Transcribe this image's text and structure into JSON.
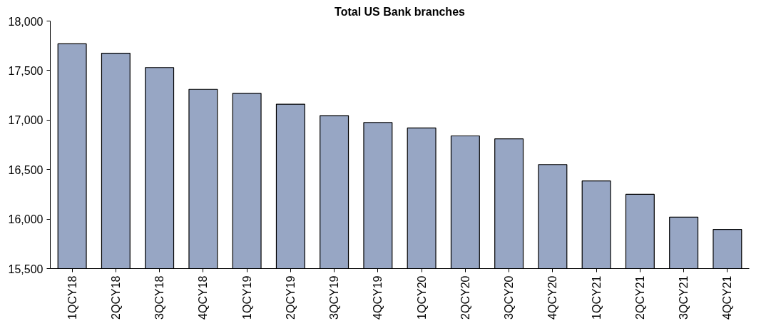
{
  "chart_data": {
    "type": "bar",
    "title": "Total US Bank branches",
    "categories": [
      "1QCY18",
      "2QCY18",
      "3QCY18",
      "4QCY18",
      "1QCY19",
      "2QCY19",
      "3QCY19",
      "4QCY19",
      "1QCY20",
      "2QCY20",
      "3QCY20",
      "4QCY20",
      "1QCY21",
      "2QCY21",
      "3QCY21",
      "4QCY21"
    ],
    "values": [
      17770,
      17675,
      17530,
      17310,
      17270,
      17160,
      17045,
      16975,
      16920,
      16840,
      16810,
      16550,
      16385,
      16250,
      16020,
      15895
    ],
    "color": "#97a6c4",
    "ylim": [
      15500,
      18000
    ],
    "yticks": [
      {
        "value": 15500,
        "label": "15,500"
      },
      {
        "value": 16000,
        "label": "16,000"
      },
      {
        "value": 16500,
        "label": "16,500"
      },
      {
        "value": 17000,
        "label": "17,000"
      },
      {
        "value": 17500,
        "label": "17,500"
      },
      {
        "value": 18000,
        "label": "18,000"
      }
    ],
    "grid": false
  }
}
